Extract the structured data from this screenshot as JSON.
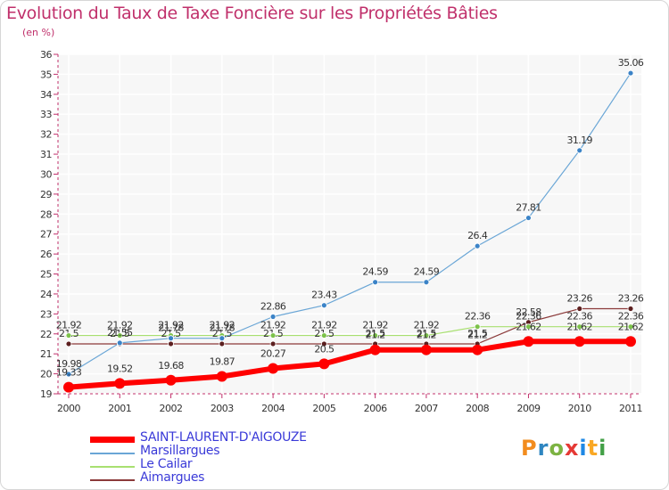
{
  "title": "Evolution du Taux de Taxe Foncière sur les Propriétés Bâties",
  "subtitle": "(en %)",
  "logo": {
    "text": "Proxiti",
    "letters": [
      "P",
      "r",
      "o",
      "x",
      "i",
      "t",
      "i"
    ],
    "colors": [
      "#f28c1e",
      "#2e86c1",
      "#7cb342",
      "#e53935",
      "#1e88e5",
      "#f9a825",
      "#43a047"
    ]
  },
  "chart_data": {
    "type": "line",
    "title": "Evolution du Taux de Taxe Foncière sur les Propriétés Bâties",
    "ylabel": "(en %)",
    "xlabel": "",
    "x": [
      "2000",
      "2001",
      "2002",
      "2003",
      "2004",
      "2005",
      "2006",
      "2007",
      "2008",
      "2009",
      "2010",
      "2011"
    ],
    "ylim": [
      19,
      36
    ],
    "yticks": [
      "19",
      "20",
      "21",
      "22",
      "23",
      "24",
      "25",
      "26",
      "27",
      "28",
      "29",
      "30",
      "31",
      "32",
      "33",
      "34",
      "35",
      "36"
    ],
    "grid": true,
    "legend_position": "bottom-left",
    "series": [
      {
        "name": "SAINT-LAURENT-D'AIGOUZE",
        "color": "#ff0000",
        "marker": "#ff0000",
        "width": 6,
        "radius": 6,
        "values": [
          19.33,
          19.52,
          19.68,
          19.87,
          20.27,
          20.5,
          21.2,
          21.2,
          21.2,
          21.62,
          21.62,
          21.62
        ],
        "labels": [
          "19.33",
          "19.52",
          "19.68",
          "19.87",
          "20.27",
          "20.5",
          "21.2",
          "21.2",
          "21.2",
          "21.62",
          "21.62",
          "21.62"
        ]
      },
      {
        "name": "Marsillargues",
        "color": "#6aa6d6",
        "marker": "#3b83c7",
        "width": 1.2,
        "radius": 3,
        "values": [
          19.98,
          21.55,
          21.78,
          21.78,
          22.86,
          23.43,
          24.59,
          24.59,
          26.4,
          27.81,
          31.19,
          35.06
        ],
        "labels": [
          "19.98",
          "21.55",
          "21.78",
          "21.78",
          "22.86",
          "23.43",
          "24.59",
          "24.59",
          "26.4",
          "27.81",
          "31.19",
          "35.06"
        ]
      },
      {
        "name": "Le Cailar",
        "color": "#a8e070",
        "marker": "#7cc24a",
        "width": 1.2,
        "radius": 3,
        "values": [
          21.92,
          21.92,
          21.92,
          21.92,
          21.92,
          21.92,
          21.92,
          21.92,
          22.36,
          22.36,
          22.36,
          22.36
        ],
        "labels": [
          "21.92",
          "21.92",
          "21.92",
          "21.92",
          "21.92",
          "21.92",
          "21.92",
          "21.92",
          "22.36",
          "22.36",
          "22.36",
          "22.36"
        ]
      },
      {
        "name": "Aimargues",
        "color": "#8b3a3a",
        "marker": "#5c1f1f",
        "width": 1.2,
        "radius": 3,
        "values": [
          21.5,
          21.5,
          21.5,
          21.5,
          21.5,
          21.5,
          21.5,
          21.5,
          21.5,
          22.58,
          23.26,
          23.26
        ],
        "labels": [
          "21.5",
          "21.5",
          "21.5",
          "21.5",
          "21.5",
          "21.5",
          "21.5",
          "21.5",
          "21.5",
          "22.58",
          "23.26",
          "23.26"
        ]
      }
    ]
  }
}
